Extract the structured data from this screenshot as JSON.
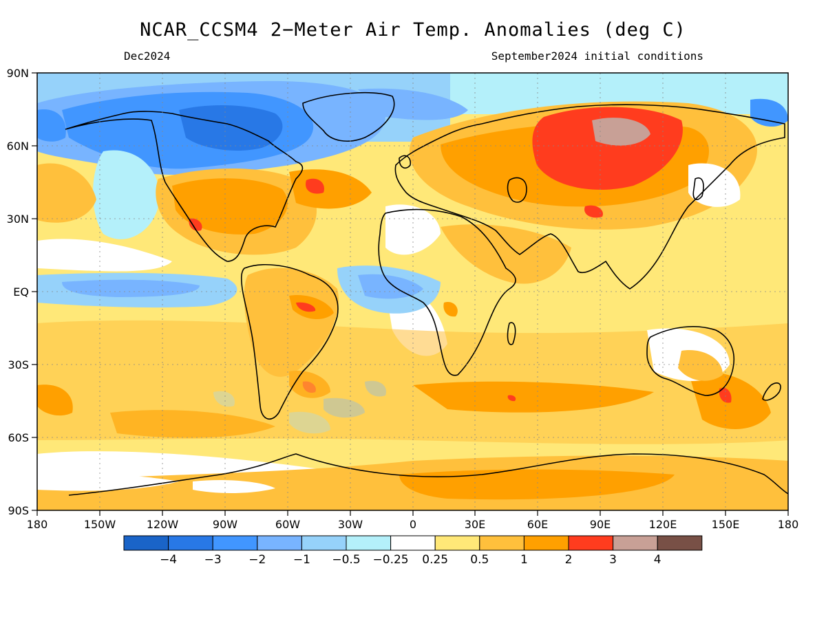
{
  "title": "NCAR_CCSM4 2−Meter Air Temp. Anomalies (deg C)",
  "valid_month": "Dec2024",
  "initial_conditions": "September2024 initial conditions",
  "lat_labels": [
    "90N",
    "60N",
    "30N",
    "EQ",
    "30S",
    "60S",
    "90S"
  ],
  "lon_labels": [
    "180",
    "150W",
    "120W",
    "90W",
    "60W",
    "30W",
    "0",
    "30E",
    "60E",
    "90E",
    "120E",
    "150E",
    "180"
  ],
  "colorbar": {
    "colors": [
      "#1a64c8",
      "#2878e6",
      "#4196ff",
      "#78b4ff",
      "#96d2fa",
      "#b4f0fa",
      "#ffffff",
      "#ffe878",
      "#ffc03c",
      "#ffa000",
      "#ff3c1e",
      "#c8a096",
      "#785046"
    ],
    "labels": [
      "−4",
      "−3",
      "−2",
      "−1",
      "−0.5",
      "−0.25",
      "0.25",
      "0.5",
      "1",
      "2",
      "3",
      "4"
    ]
  },
  "anomaly_regions": [
    {
      "name": "Arctic / Canada cold",
      "anomaly": "-2 to -3"
    },
    {
      "name": "Siberia warm",
      "anomaly": "2 to 4"
    },
    {
      "name": "Equatorial Pacific cool",
      "anomaly": "-0.5 to -1"
    },
    {
      "name": "Southern Ocean warm",
      "anomaly": "0.5 to 1"
    }
  ]
}
